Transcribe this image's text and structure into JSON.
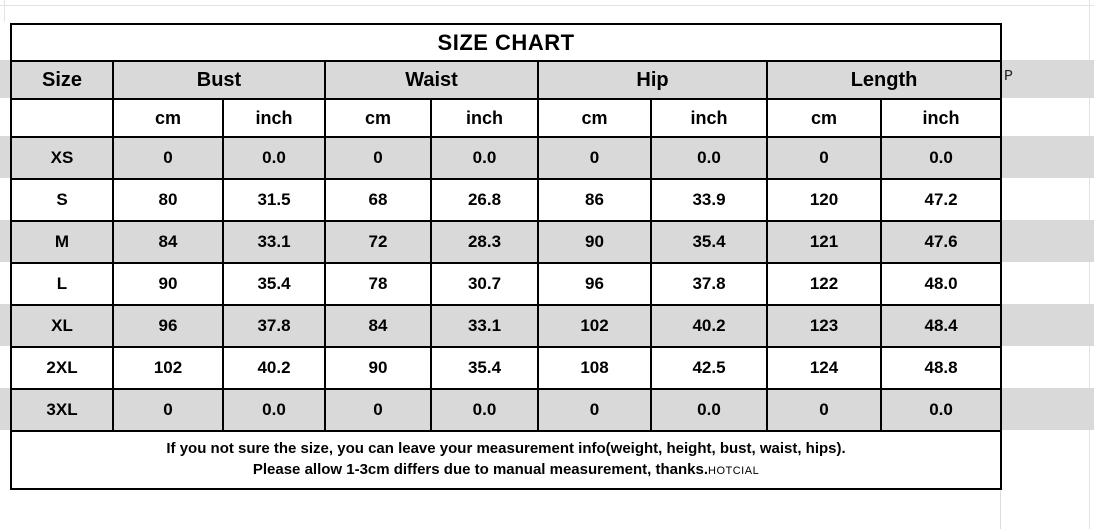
{
  "title": "SIZE CHART",
  "stray_right_label": "P",
  "columns": {
    "size": "Size",
    "groups": [
      "Bust",
      "Waist",
      "Hip",
      "Length"
    ],
    "units": {
      "cm": "cm",
      "inch": "inch"
    }
  },
  "rows": [
    {
      "size": "XS",
      "values": [
        "0",
        "0.0",
        "0",
        "0.0",
        "0",
        "0.0",
        "0",
        "0.0"
      ]
    },
    {
      "size": "S",
      "values": [
        "80",
        "31.5",
        "68",
        "26.8",
        "86",
        "33.9",
        "120",
        "47.2"
      ]
    },
    {
      "size": "M",
      "values": [
        "84",
        "33.1",
        "72",
        "28.3",
        "90",
        "35.4",
        "121",
        "47.6"
      ]
    },
    {
      "size": "L",
      "values": [
        "90",
        "35.4",
        "78",
        "30.7",
        "96",
        "37.8",
        "122",
        "48.0"
      ]
    },
    {
      "size": "XL",
      "values": [
        "96",
        "37.8",
        "84",
        "33.1",
        "102",
        "40.2",
        "123",
        "48.4"
      ]
    },
    {
      "size": "2XL",
      "values": [
        "102",
        "40.2",
        "90",
        "35.4",
        "108",
        "42.5",
        "124",
        "48.8"
      ]
    },
    {
      "size": "3XL",
      "values": [
        "0",
        "0.0",
        "0",
        "0.0",
        "0",
        "0.0",
        "0",
        "0.0"
      ]
    }
  ],
  "note": {
    "line1": "If you not sure the size, you can leave your measurement info(weight, height, bust, waist, hips).",
    "line2": "Please allow 1-3cm differs due to manual measurement, thanks.",
    "brand": "HOTCIAL"
  },
  "colors": {
    "stripe_gray": "#d9d9d9",
    "border_black": "#000000",
    "gridline_gray": "#e3e3e3"
  }
}
